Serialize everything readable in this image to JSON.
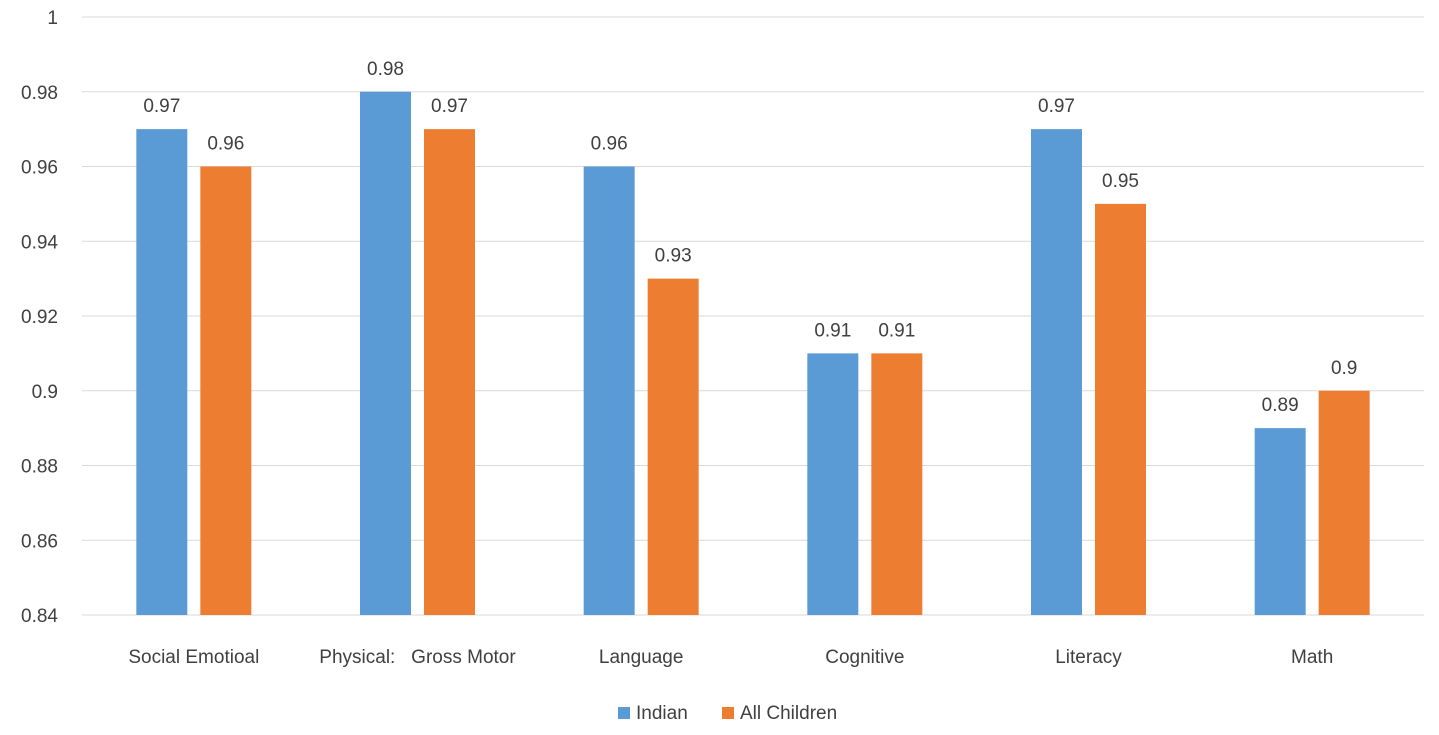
{
  "chart_data": {
    "type": "bar",
    "categories": [
      "Social Emotioal",
      "Physical:   Gross Motor",
      "Language",
      "Cognitive",
      "Literacy",
      "Math"
    ],
    "series": [
      {
        "name": "Indian",
        "color": "#5B9BD5",
        "values": [
          0.97,
          0.98,
          0.96,
          0.91,
          0.97,
          0.89
        ]
      },
      {
        "name": "All Children",
        "color": "#ED7D31",
        "values": [
          0.96,
          0.97,
          0.93,
          0.91,
          0.95,
          0.9
        ]
      }
    ],
    "ylim": [
      0.84,
      1
    ],
    "yticks": [
      "0.84",
      "0.86",
      "0.88",
      "0.9",
      "0.92",
      "0.94",
      "0.96",
      "0.98",
      "1"
    ],
    "grid": true,
    "legend_position": "bottom",
    "gridline_color": "#D9D9D9",
    "text_color": "#404040"
  }
}
